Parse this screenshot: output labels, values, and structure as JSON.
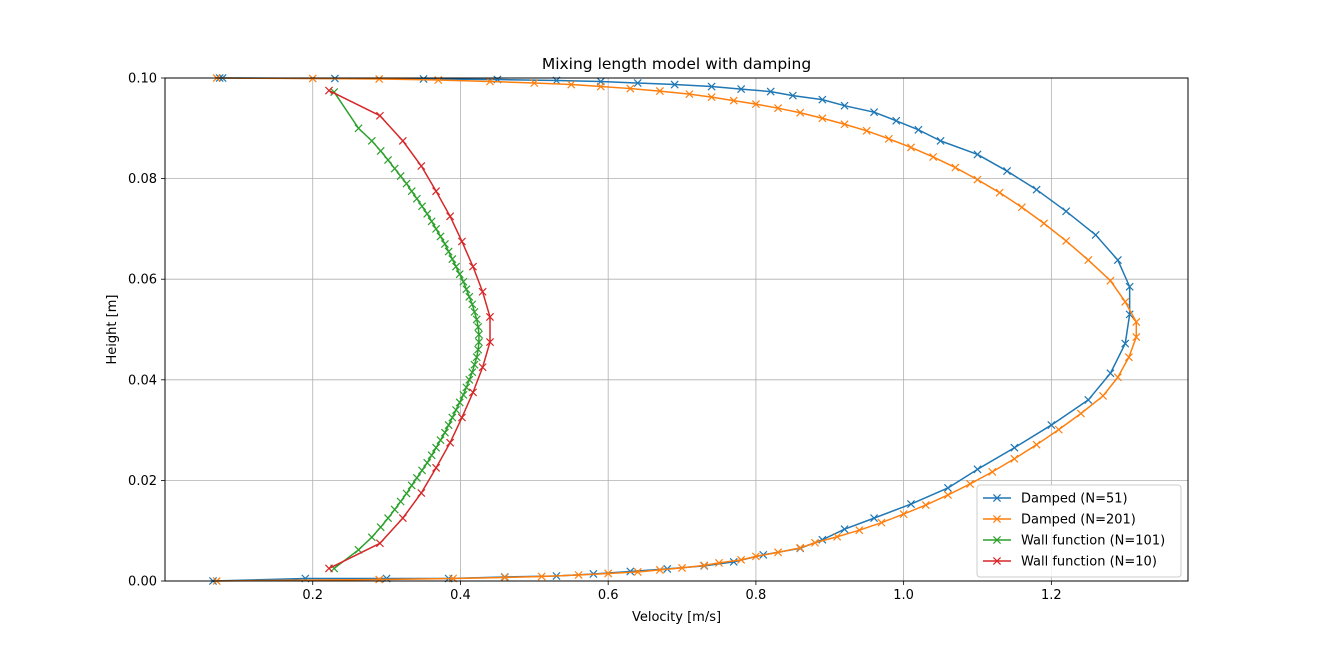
{
  "chart_data": {
    "type": "line",
    "title": "Mixing length model with damping",
    "xlabel": "Velocity [m/s]",
    "ylabel": "Height [m]",
    "xlim": [
      0.0,
      1.385
    ],
    "ylim": [
      0.0,
      0.1
    ],
    "xticks": [
      0.2,
      0.4,
      0.6,
      0.8,
      1.0,
      1.2
    ],
    "xtick_labels": [
      "0.2",
      "0.4",
      "0.6",
      "0.8",
      "1.0",
      "1.2"
    ],
    "yticks": [
      0.0,
      0.02,
      0.04,
      0.06,
      0.08,
      0.1
    ],
    "ytick_labels": [
      "0.00",
      "0.02",
      "0.04",
      "0.06",
      "0.08",
      "0.10"
    ],
    "grid": true,
    "legend_position": "lower-right",
    "marker": "x",
    "series": [
      {
        "name": "Damped (N=51)",
        "color": "#1f77b4",
        "x": [
          0.065,
          0.19,
          0.3,
          0.384,
          0.46,
          0.53,
          0.58,
          0.63,
          0.68,
          0.73,
          0.77,
          0.81,
          0.86,
          0.89,
          0.92,
          0.96,
          1.01,
          1.06,
          1.1,
          1.15,
          1.2,
          1.25,
          1.28,
          1.3,
          1.306,
          1.306,
          1.29,
          1.26,
          1.22,
          1.18,
          1.14,
          1.1,
          1.05,
          1.02,
          0.99,
          0.96,
          0.92,
          0.89,
          0.85,
          0.82,
          0.78,
          0.74,
          0.69,
          0.64,
          0.59,
          0.53,
          0.45,
          0.35,
          0.23,
          0.078,
          0.074
        ],
        "y": [
          0.0,
          0.0005,
          0.0005,
          0.0005,
          0.0008,
          0.001,
          0.0014,
          0.0019,
          0.0024,
          0.003,
          0.0038,
          0.0052,
          0.0065,
          0.0082,
          0.0103,
          0.0125,
          0.0153,
          0.0185,
          0.0222,
          0.0265,
          0.031,
          0.036,
          0.0413,
          0.0472,
          0.053,
          0.0585,
          0.0638,
          0.0688,
          0.0735,
          0.0778,
          0.0815,
          0.0848,
          0.0875,
          0.0897,
          0.0915,
          0.0932,
          0.0945,
          0.0957,
          0.0965,
          0.0973,
          0.0978,
          0.0983,
          0.0987,
          0.099,
          0.0993,
          0.0995,
          0.0997,
          0.0998,
          0.0999,
          0.1,
          0.1
        ]
      },
      {
        "name": "Damped (N=201)",
        "color": "#ff7f0e",
        "x": [
          0.07,
          0.29,
          0.39,
          0.46,
          0.51,
          0.56,
          0.6,
          0.64,
          0.67,
          0.7,
          0.73,
          0.75,
          0.78,
          0.8,
          0.83,
          0.86,
          0.88,
          0.91,
          0.94,
          0.97,
          1.0,
          1.03,
          1.06,
          1.09,
          1.12,
          1.15,
          1.18,
          1.21,
          1.24,
          1.27,
          1.29,
          1.305,
          1.315,
          1.315,
          1.3,
          1.28,
          1.25,
          1.22,
          1.19,
          1.16,
          1.13,
          1.1,
          1.07,
          1.04,
          1.01,
          0.98,
          0.95,
          0.92,
          0.89,
          0.86,
          0.83,
          0.8,
          0.77,
          0.74,
          0.71,
          0.67,
          0.63,
          0.59,
          0.55,
          0.5,
          0.44,
          0.37,
          0.29,
          0.2,
          0.07
        ],
        "y": [
          0.0,
          0.0003,
          0.0005,
          0.0007,
          0.0009,
          0.0012,
          0.0015,
          0.0018,
          0.0022,
          0.0026,
          0.0031,
          0.0036,
          0.0042,
          0.0049,
          0.0057,
          0.0066,
          0.0076,
          0.0088,
          0.0101,
          0.0116,
          0.0133,
          0.0151,
          0.0171,
          0.0193,
          0.0217,
          0.0243,
          0.0271,
          0.0301,
          0.0333,
          0.0368,
          0.0405,
          0.0445,
          0.0485,
          0.0515,
          0.0555,
          0.0597,
          0.0638,
          0.0676,
          0.0711,
          0.0743,
          0.0772,
          0.0798,
          0.0822,
          0.0843,
          0.0862,
          0.0879,
          0.0895,
          0.0908,
          0.092,
          0.0931,
          0.094,
          0.0948,
          0.0955,
          0.0962,
          0.0968,
          0.0974,
          0.0979,
          0.0983,
          0.0987,
          0.099,
          0.0993,
          0.0996,
          0.0998,
          0.0999,
          0.1
        ]
      },
      {
        "name": "Wall function (N=101)",
        "color": "#2ca02c",
        "x": [
          0.229,
          0.262,
          0.28,
          0.292,
          0.302,
          0.311,
          0.319,
          0.327,
          0.334,
          0.341,
          0.348,
          0.355,
          0.361,
          0.367,
          0.373,
          0.379,
          0.384,
          0.389,
          0.394,
          0.399,
          0.404,
          0.408,
          0.412,
          0.416,
          0.419,
          0.422,
          0.424,
          0.425,
          0.425,
          0.424,
          0.422,
          0.419,
          0.416,
          0.412,
          0.408,
          0.404,
          0.399,
          0.394,
          0.389,
          0.384,
          0.379,
          0.373,
          0.367,
          0.361,
          0.355,
          0.348,
          0.341,
          0.334,
          0.327,
          0.319,
          0.311,
          0.302,
          0.292,
          0.28,
          0.262,
          0.229
        ],
        "y": [
          0.0025,
          0.0062,
          0.0087,
          0.0107,
          0.0125,
          0.0142,
          0.0158,
          0.0174,
          0.019,
          0.0205,
          0.022,
          0.0235,
          0.025,
          0.0265,
          0.028,
          0.0295,
          0.031,
          0.0325,
          0.034,
          0.0355,
          0.037,
          0.0385,
          0.04,
          0.0415,
          0.043,
          0.0445,
          0.046,
          0.0475,
          0.049,
          0.0505,
          0.052,
          0.0535,
          0.055,
          0.0565,
          0.058,
          0.0595,
          0.061,
          0.0625,
          0.064,
          0.0655,
          0.067,
          0.0685,
          0.07,
          0.0715,
          0.073,
          0.0745,
          0.076,
          0.0775,
          0.079,
          0.0805,
          0.082,
          0.0837,
          0.0855,
          0.0875,
          0.09,
          0.0972
        ]
      },
      {
        "name": "Wall function (N=10)",
        "color": "#d62728",
        "x": [
          0.222,
          0.291,
          0.322,
          0.347,
          0.367,
          0.386,
          0.402,
          0.417,
          0.43,
          0.44,
          0.44,
          0.43,
          0.417,
          0.402,
          0.386,
          0.367,
          0.347,
          0.322,
          0.291,
          0.222
        ],
        "y": [
          0.0025,
          0.0075,
          0.0125,
          0.0175,
          0.0225,
          0.0275,
          0.0325,
          0.0375,
          0.0425,
          0.0475,
          0.0525,
          0.0575,
          0.0625,
          0.0675,
          0.0725,
          0.0775,
          0.0825,
          0.0875,
          0.0925,
          0.0975
        ]
      }
    ]
  }
}
